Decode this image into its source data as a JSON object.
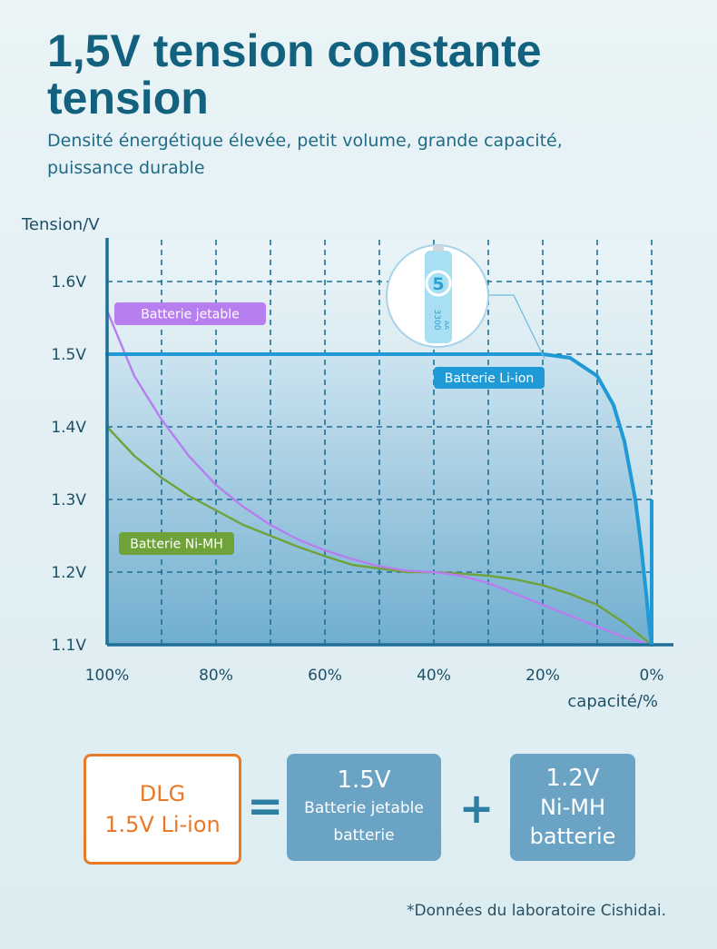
{
  "header": {
    "title": "1,5V tension constante tension",
    "subtitle": "Densité énergétique élevée, petit volume, grande capacité, puissance durable"
  },
  "chart_data": {
    "type": "line",
    "xlabel": "capacité/%",
    "ylabel": "Tension/V",
    "x_reversed": true,
    "xlim": [
      100,
      0
    ],
    "ylim": [
      1.1,
      1.65
    ],
    "xticks": [
      "100%",
      "80%",
      "60%",
      "40%",
      "20%",
      "0%"
    ],
    "xtick_values": [
      100,
      80,
      60,
      40,
      20,
      0
    ],
    "yticks": [
      "1.6V",
      "1.5V",
      "1.4V",
      "1.3V",
      "1.2V",
      "1.1V"
    ],
    "ytick_values": [
      1.6,
      1.5,
      1.4,
      1.3,
      1.2,
      1.1
    ],
    "grid": true,
    "series": [
      {
        "name": "Batterie Li-ion",
        "color": "#1f9ad6",
        "x": [
          100,
          80,
          60,
          40,
          30,
          20,
          15,
          10,
          7,
          5,
          3,
          2,
          1,
          0.5,
          0
        ],
        "y": [
          1.5,
          1.5,
          1.5,
          1.5,
          1.5,
          1.5,
          1.495,
          1.47,
          1.43,
          1.38,
          1.3,
          1.24,
          1.17,
          1.13,
          1.1
        ]
      },
      {
        "name": "Batterie jetable",
        "color": "#b77ef0",
        "x": [
          100,
          95,
          90,
          85,
          80,
          75,
          70,
          65,
          60,
          55,
          50,
          45,
          40,
          35,
          30,
          25,
          20,
          15,
          10,
          5,
          0
        ],
        "y": [
          1.56,
          1.47,
          1.41,
          1.36,
          1.32,
          1.29,
          1.265,
          1.245,
          1.23,
          1.218,
          1.208,
          1.202,
          1.2,
          1.195,
          1.185,
          1.17,
          1.155,
          1.14,
          1.125,
          1.11,
          1.1
        ]
      },
      {
        "name": "Batterie Ni-MH",
        "color": "#6fa33a",
        "x": [
          100,
          95,
          90,
          85,
          80,
          75,
          70,
          65,
          60,
          55,
          50,
          45,
          40,
          35,
          30,
          25,
          20,
          15,
          10,
          5,
          0
        ],
        "y": [
          1.4,
          1.36,
          1.33,
          1.305,
          1.285,
          1.265,
          1.25,
          1.235,
          1.222,
          1.21,
          1.205,
          1.2,
          1.2,
          1.198,
          1.195,
          1.19,
          1.182,
          1.17,
          1.155,
          1.13,
          1.1
        ]
      }
    ]
  },
  "product_image": {
    "icon": "aa-battery-icon",
    "number": "5",
    "capacity": "3300",
    "size": "AA"
  },
  "equation": {
    "left_line1": "DLG",
    "left_line2": "1.5V Li-ion",
    "equals": "=",
    "mid_line1": "1.5V",
    "mid_line2": "Batterie jetable",
    "mid_line3": "batterie",
    "plus": "+",
    "right_line1": "1.2V",
    "right_line2": "Ni-MH",
    "right_line3": "batterie"
  },
  "footnote": "*Données du laboratoire Cishidai.",
  "colors": {
    "title": "#12617f",
    "accent_orange": "#e87a27",
    "box_blue": "#6aa3c4",
    "axis": "#1e6f95"
  }
}
